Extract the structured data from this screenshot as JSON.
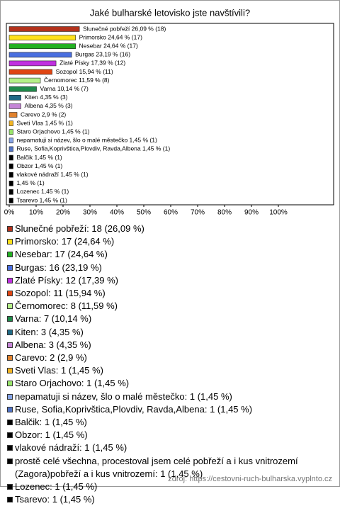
{
  "chart_data": {
    "type": "bar",
    "orientation": "horizontal",
    "title": "Jaké bulharské letovisko jste navštívili?",
    "values": [
      26.09,
      24.64,
      24.64,
      23.19,
      17.39,
      15.94,
      11.59,
      10.14,
      4.35,
      4.35,
      2.9,
      1.45,
      1.45,
      1.45,
      1.45,
      1.45,
      1.45,
      1.45,
      1.45,
      1.45,
      1.45
    ],
    "value_labels": [
      "Slunečné pobřeží 26,09 % (18)",
      "Primorsko 24,64 % (17)",
      "Nesebar 24,64 % (17)",
      "Burgas 23,19 % (16)",
      "Zlaté Písky 17,39 % (12)",
      "Sozopol 15,94 % (11)",
      "Černomorec 11,59 % (8)",
      "Varna 10,14 % (7)",
      "Kiten 4,35 % (3)",
      "Albena 4,35 % (3)",
      "Carevo 2,9 % (2)",
      "Sveti Vlas 1,45 % (1)",
      "Staro Orjachovo 1,45 % (1)",
      "nepamatuji si název, šlo o malé městečko 1,45 % (1)",
      "Ruse, Sofia,Koprivštica,Plovdiv, Ravda,Albena 1,45 % (1)",
      "Balčik 1,45 % (1)",
      "Obzor 1,45 % (1)",
      "vlakové nádraží 1,45 % (1)",
      "1,45 % (1)",
      "Lozenec 1,45 % (1)",
      "Tsarevo 1,45 % (1)"
    ],
    "legend_labels": [
      "Slunečné pobřeží: 18 (26,09 %)",
      "Primorsko: 17 (24,64 %)",
      "Nesebar: 17 (24,64 %)",
      "Burgas: 16 (23,19 %)",
      "Zlaté Písky: 12 (17,39 %)",
      "Sozopol: 11 (15,94 %)",
      "Černomorec: 8 (11,59 %)",
      "Varna: 7 (10,14 %)",
      "Kiten: 3 (4,35 %)",
      "Albena: 3 (4,35 %)",
      "Carevo: 2 (2,9 %)",
      "Sveti Vlas: 1 (1,45 %)",
      "Staro Orjachovo: 1 (1,45 %)",
      "nepamatuji si název, šlo o malé městečko: 1 (1,45 %)",
      "Ruse, Sofia,Koprivštica,Plovdiv, Ravda,Albena: 1 (1,45 %)",
      "Balčik: 1 (1,45 %)",
      "Obzor: 1 (1,45 %)",
      "vlakové nádraží: 1 (1,45 %)",
      "prostě celé všechna, procestoval jsem celé pobřeží a i kus vnitrozemí (Zagora)pobřeží a i kus vnitrozemí: 1 (1,45 %)",
      "Lozenec: 1 (1,45 %)",
      "Tsarevo: 1 (1,45 %)"
    ],
    "colors": [
      "#b3321c",
      "#ffe11a",
      "#22b022",
      "#4a6fe0",
      "#c030e0",
      "#e04512",
      "#b4f088",
      "#1f8a4a",
      "#1f6a86",
      "#c585d6",
      "#e0822e",
      "#f2b524",
      "#98e46a",
      "#86a4e6",
      "#5072c4",
      "#000000",
      "#000000",
      "#000000",
      "#000000",
      "#000000",
      "#000000"
    ],
    "xlim": [
      0,
      120
    ],
    "xticks": [
      {
        "value": 0,
        "label": "0%"
      },
      {
        "value": 10,
        "label": "10%"
      },
      {
        "value": 20,
        "label": "20%"
      },
      {
        "value": 30,
        "label": "30%"
      },
      {
        "value": 40,
        "label": "40%"
      },
      {
        "value": 50,
        "label": "50%"
      },
      {
        "value": 60,
        "label": "60%"
      },
      {
        "value": 70,
        "label": "70%"
      },
      {
        "value": 80,
        "label": "80%"
      },
      {
        "value": 90,
        "label": "90%"
      },
      {
        "value": 100,
        "label": "100%"
      }
    ],
    "source": "zdroj: https://cestovni-ruch-bulharska.vyplnto.cz"
  }
}
